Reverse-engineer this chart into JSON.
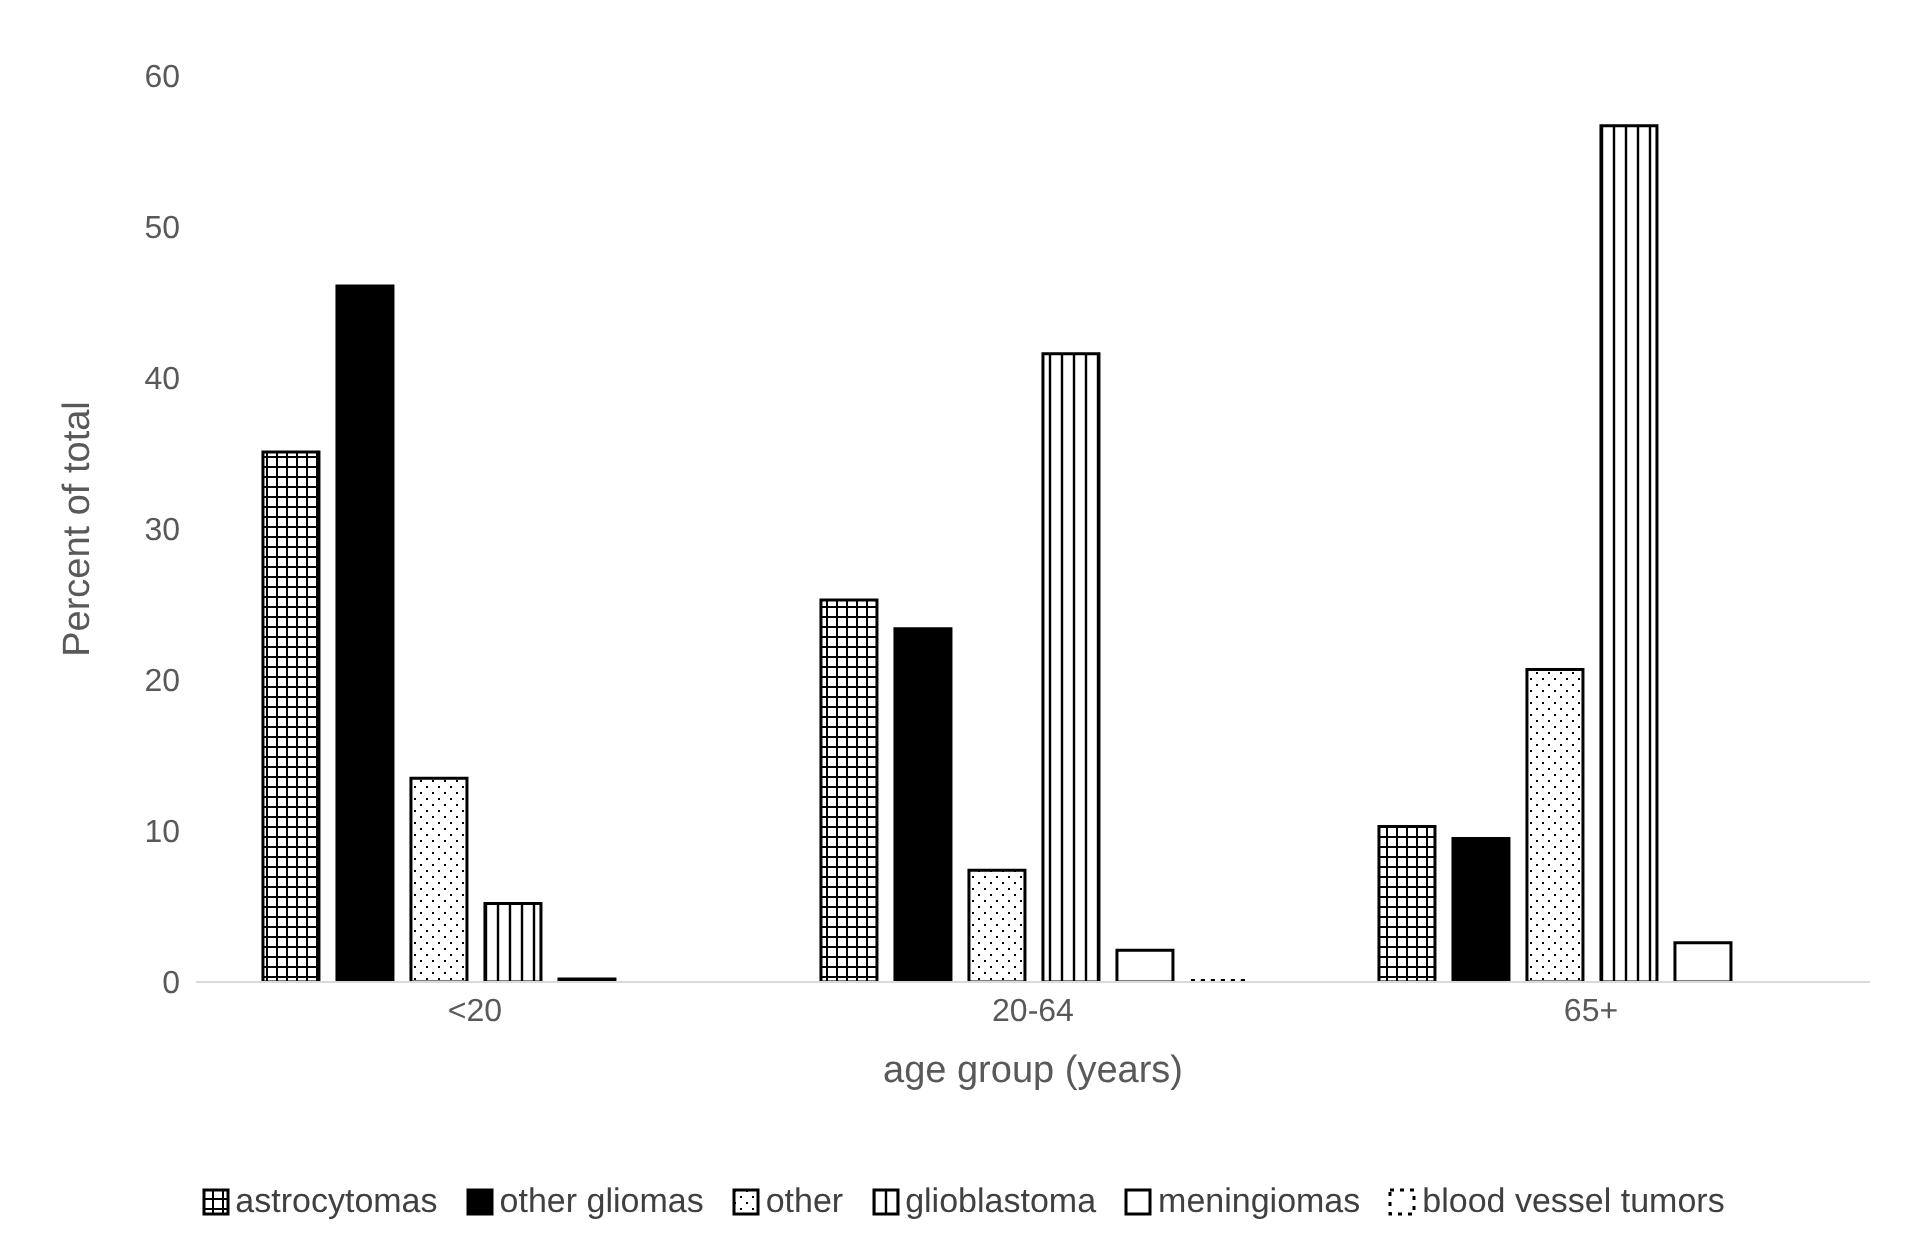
{
  "chart_data": {
    "type": "bar",
    "xlabel": "age group (years)",
    "ylabel": "Percent of total",
    "categories": [
      "<20",
      "20-64",
      "65+"
    ],
    "series": [
      {
        "name": "astrocytomas",
        "color": "#000000",
        "values": [
          35.1,
          25.3,
          10.3
        ]
      },
      {
        "name": "other gliomas",
        "color": "#000000",
        "values": [
          46.1,
          23.4,
          9.5
        ]
      },
      {
        "name": "other",
        "color": "#000000",
        "values": [
          13.5,
          7.4,
          20.7
        ]
      },
      {
        "name": "glioblastoma",
        "color": "#000000",
        "values": [
          5.2,
          41.6,
          56.7
        ]
      },
      {
        "name": "meningiomas",
        "color": "#000000",
        "values": [
          0.2,
          2.1,
          2.6
        ]
      },
      {
        "name": "blood vessel tumors",
        "color": "#000000",
        "values": [
          0,
          0.1,
          0
        ]
      }
    ],
    "ylim": [
      0,
      60
    ],
    "yticks": [
      0,
      10,
      20,
      30,
      40,
      50,
      60
    ],
    "grid": false,
    "legend": "bottom"
  }
}
